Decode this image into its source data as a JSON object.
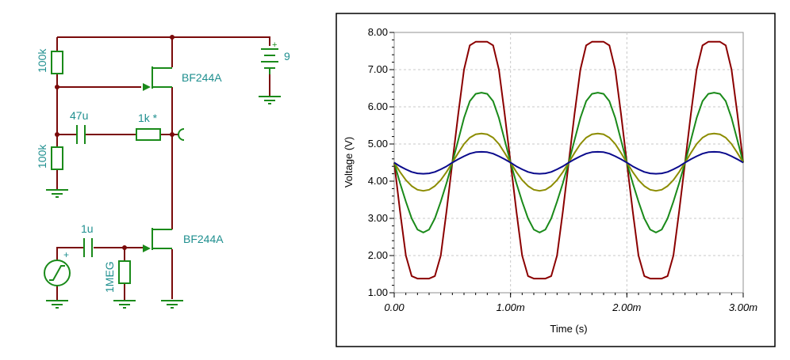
{
  "schematic": {
    "labels": {
      "r_top": "100k",
      "r_bottom": "100k",
      "cap_out": "47u",
      "r_series": "1k *",
      "battery": "9",
      "battery_plus": "+",
      "jfet_top": "BF244A",
      "jfet_bottom": "BF244A",
      "cap_in": "1u",
      "r_gate": "1MEG",
      "source_plus": "+"
    }
  },
  "chart_data": {
    "type": "line",
    "xlabel": "Time (s)",
    "ylabel": "Voltage (V)",
    "xlim": [
      0,
      0.003
    ],
    "ylim": [
      1.0,
      8.0
    ],
    "x_tick_labels": [
      "0.00",
      "1.00m",
      "2.00m",
      "3.00m"
    ],
    "x_tick_values": [
      0,
      0.001,
      0.002,
      0.003
    ],
    "y_tick_labels": [
      "1.00",
      "2.00",
      "3.00",
      "4.00",
      "5.00",
      "6.00",
      "7.00",
      "8.00"
    ],
    "y_tick_values": [
      1,
      2,
      3,
      4,
      5,
      6,
      7,
      8
    ],
    "grid": true,
    "series": [
      {
        "color": "#8b0000",
        "x": [
          0,
          5e-05,
          0.0001,
          0.00015,
          0.0002,
          0.00025,
          0.0003,
          0.00035,
          0.0004,
          0.00045,
          0.0005,
          0.00055,
          0.0006,
          0.00065,
          0.0007,
          0.00075,
          0.0008,
          0.00085,
          0.0009,
          0.00095,
          0.001,
          0.00105,
          0.0011,
          0.00115,
          0.0012,
          0.00125,
          0.0013,
          0.00135,
          0.0014,
          0.00145,
          0.0015,
          0.00155,
          0.0016,
          0.00165,
          0.0017,
          0.00175,
          0.0018,
          0.00185,
          0.0019,
          0.00195,
          0.002,
          0.00205,
          0.0021,
          0.00215,
          0.0022,
          0.00225,
          0.0023,
          0.00235,
          0.0024,
          0.00245,
          0.0025,
          0.00255,
          0.0026,
          0.00265,
          0.0027,
          0.00275,
          0.0028,
          0.00285,
          0.0029,
          0.00295,
          0.003
        ],
        "y": [
          4.5,
          3.2,
          2.0,
          1.45,
          1.38,
          1.38,
          1.38,
          1.45,
          2.0,
          3.2,
          4.5,
          5.8,
          7.0,
          7.65,
          7.75,
          7.75,
          7.75,
          7.65,
          7.0,
          5.8,
          4.5,
          3.2,
          2.0,
          1.45,
          1.38,
          1.38,
          1.38,
          1.45,
          2.0,
          3.2,
          4.5,
          5.8,
          7.0,
          7.65,
          7.75,
          7.75,
          7.75,
          7.65,
          7.0,
          5.8,
          4.5,
          3.2,
          2.0,
          1.45,
          1.38,
          1.38,
          1.38,
          1.45,
          2.0,
          3.2,
          4.5,
          5.8,
          7.0,
          7.65,
          7.75,
          7.75,
          7.75,
          7.65,
          7.0,
          5.8,
          4.5
        ]
      },
      {
        "color": "#1a8a1a",
        "x": [
          0,
          5e-05,
          0.0001,
          0.00015,
          0.0002,
          0.00025,
          0.0003,
          0.00035,
          0.0004,
          0.00045,
          0.0005,
          0.00055,
          0.0006,
          0.00065,
          0.0007,
          0.00075,
          0.0008,
          0.00085,
          0.0009,
          0.00095,
          0.001,
          0.00105,
          0.0011,
          0.00115,
          0.0012,
          0.00125,
          0.0013,
          0.00135,
          0.0014,
          0.00145,
          0.0015,
          0.00155,
          0.0016,
          0.00165,
          0.0017,
          0.00175,
          0.0018,
          0.00185,
          0.0019,
          0.00195,
          0.002,
          0.00205,
          0.0021,
          0.00215,
          0.0022,
          0.00225,
          0.0023,
          0.00235,
          0.0024,
          0.00245,
          0.0025,
          0.00255,
          0.0026,
          0.00265,
          0.0027,
          0.00275,
          0.0028,
          0.00285,
          0.0029,
          0.00295,
          0.003
        ],
        "y": [
          4.5,
          3.95,
          3.45,
          3.0,
          2.7,
          2.62,
          2.7,
          3.0,
          3.45,
          3.95,
          4.5,
          5.1,
          5.7,
          6.15,
          6.35,
          6.38,
          6.35,
          6.15,
          5.7,
          5.1,
          4.5,
          3.95,
          3.45,
          3.0,
          2.7,
          2.62,
          2.7,
          3.0,
          3.45,
          3.95,
          4.5,
          5.1,
          5.7,
          6.15,
          6.35,
          6.38,
          6.35,
          6.15,
          5.7,
          5.1,
          4.5,
          3.95,
          3.45,
          3.0,
          2.7,
          2.62,
          2.7,
          3.0,
          3.45,
          3.95,
          4.5,
          5.1,
          5.7,
          6.15,
          6.35,
          6.38,
          6.35,
          6.15,
          5.7,
          5.1,
          4.5
        ]
      },
      {
        "color": "#8c8c00",
        "x": [
          0,
          5e-05,
          0.0001,
          0.00015,
          0.0002,
          0.00025,
          0.0003,
          0.00035,
          0.0004,
          0.00045,
          0.0005,
          0.00055,
          0.0006,
          0.00065,
          0.0007,
          0.00075,
          0.0008,
          0.00085,
          0.0009,
          0.00095,
          0.001,
          0.00105,
          0.0011,
          0.00115,
          0.0012,
          0.00125,
          0.0013,
          0.00135,
          0.0014,
          0.00145,
          0.0015,
          0.00155,
          0.0016,
          0.00165,
          0.0017,
          0.00175,
          0.0018,
          0.00185,
          0.0019,
          0.00195,
          0.002,
          0.00205,
          0.0021,
          0.00215,
          0.0022,
          0.00225,
          0.0023,
          0.00235,
          0.0024,
          0.00245,
          0.0025,
          0.00255,
          0.0026,
          0.00265,
          0.0027,
          0.00275,
          0.0028,
          0.00285,
          0.0029,
          0.00295,
          0.003
        ],
        "y": [
          4.5,
          4.25,
          4.03,
          3.87,
          3.77,
          3.74,
          3.77,
          3.87,
          4.03,
          4.25,
          4.5,
          4.76,
          5.0,
          5.17,
          5.26,
          5.28,
          5.26,
          5.17,
          5.0,
          4.76,
          4.5,
          4.25,
          4.03,
          3.87,
          3.77,
          3.74,
          3.77,
          3.87,
          4.03,
          4.25,
          4.5,
          4.76,
          5.0,
          5.17,
          5.26,
          5.28,
          5.26,
          5.17,
          5.0,
          4.76,
          4.5,
          4.25,
          4.03,
          3.87,
          3.77,
          3.74,
          3.77,
          3.87,
          4.03,
          4.25,
          4.5,
          4.76,
          5.0,
          5.17,
          5.26,
          5.28,
          5.26,
          5.17,
          5.0,
          4.76,
          4.5
        ]
      },
      {
        "color": "#0a0a8c",
        "x": [
          0,
          5e-05,
          0.0001,
          0.00015,
          0.0002,
          0.00025,
          0.0003,
          0.00035,
          0.0004,
          0.00045,
          0.0005,
          0.00055,
          0.0006,
          0.00065,
          0.0007,
          0.00075,
          0.0008,
          0.00085,
          0.0009,
          0.00095,
          0.001,
          0.00105,
          0.0011,
          0.00115,
          0.0012,
          0.00125,
          0.0013,
          0.00135,
          0.0014,
          0.00145,
          0.0015,
          0.00155,
          0.0016,
          0.00165,
          0.0017,
          0.00175,
          0.0018,
          0.00185,
          0.0019,
          0.00195,
          0.002,
          0.00205,
          0.0021,
          0.00215,
          0.0022,
          0.00225,
          0.0023,
          0.00235,
          0.0024,
          0.00245,
          0.0025,
          0.00255,
          0.0026,
          0.00265,
          0.0027,
          0.00275,
          0.0028,
          0.00285,
          0.0029,
          0.00295,
          0.003
        ],
        "y": [
          4.5,
          4.4,
          4.32,
          4.25,
          4.21,
          4.2,
          4.21,
          4.25,
          4.32,
          4.4,
          4.5,
          4.59,
          4.67,
          4.74,
          4.78,
          4.79,
          4.78,
          4.74,
          4.67,
          4.59,
          4.5,
          4.4,
          4.32,
          4.25,
          4.21,
          4.2,
          4.21,
          4.25,
          4.32,
          4.4,
          4.5,
          4.59,
          4.67,
          4.74,
          4.78,
          4.79,
          4.78,
          4.74,
          4.67,
          4.59,
          4.5,
          4.4,
          4.32,
          4.25,
          4.21,
          4.2,
          4.21,
          4.25,
          4.32,
          4.4,
          4.5,
          4.59,
          4.67,
          4.74,
          4.78,
          4.79,
          4.78,
          4.74,
          4.67,
          4.59,
          4.5
        ]
      }
    ]
  }
}
